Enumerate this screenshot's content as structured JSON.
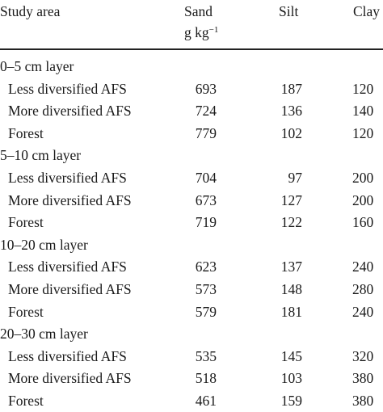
{
  "header": {
    "col_study_area": "Study area",
    "col_sand": "Sand",
    "col_silt": "Silt",
    "col_clay": "Clay",
    "unit_base": "g kg",
    "unit_exp": "−1"
  },
  "groups": [
    {
      "layer": "0–5 cm layer",
      "rows": [
        {
          "label": "Less diversified AFS",
          "sand": "693",
          "silt": "187",
          "clay": "120"
        },
        {
          "label": "More diversified AFS",
          "sand": "724",
          "silt": "136",
          "clay": "140"
        },
        {
          "label": "Forest",
          "sand": "779",
          "silt": "102",
          "clay": "120"
        }
      ]
    },
    {
      "layer": "5–10 cm layer",
      "rows": [
        {
          "label": "Less diversified AFS",
          "sand": "704",
          "silt": "97",
          "clay": "200"
        },
        {
          "label": "More diversified AFS",
          "sand": "673",
          "silt": "127",
          "clay": "200"
        },
        {
          "label": "Forest",
          "sand": "719",
          "silt": "122",
          "clay": "160"
        }
      ]
    },
    {
      "layer": "10–20 cm layer",
      "rows": [
        {
          "label": "Less diversified AFS",
          "sand": "623",
          "silt": "137",
          "clay": "240"
        },
        {
          "label": "More diversified AFS",
          "sand": "573",
          "silt": "148",
          "clay": "280"
        },
        {
          "label": "Forest",
          "sand": "579",
          "silt": "181",
          "clay": "240"
        }
      ]
    },
    {
      "layer": "20–30 cm layer",
      "rows": [
        {
          "label": "Less diversified AFS",
          "sand": "535",
          "silt": "145",
          "clay": "320"
        },
        {
          "label": "More diversified AFS",
          "sand": "518",
          "silt": "103",
          "clay": "380"
        },
        {
          "label": "Forest",
          "sand": "461",
          "silt": "159",
          "clay": "380"
        }
      ]
    }
  ]
}
